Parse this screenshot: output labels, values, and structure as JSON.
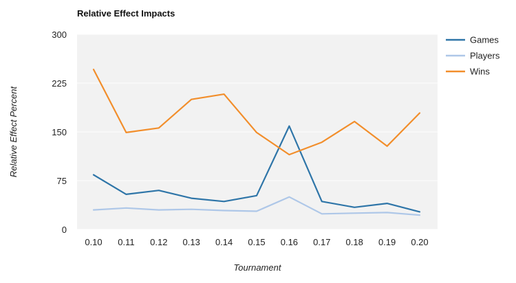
{
  "chart_data": {
    "type": "line",
    "title": "Relative Effect Impacts",
    "xlabel": "Tournament",
    "ylabel": "Relative Effect Percent",
    "categories": [
      "0.10",
      "0.11",
      "0.12",
      "0.13",
      "0.14",
      "0.15",
      "0.16",
      "0.17",
      "0.18",
      "0.19",
      "0.20"
    ],
    "yticks": [
      "0",
      "75",
      "150",
      "225",
      "300"
    ],
    "ylim": [
      0,
      300
    ],
    "grid": true,
    "legend_position": "right",
    "series": [
      {
        "name": "Games",
        "color": "#2e75a8",
        "values": [
          84,
          54,
          60,
          48,
          43,
          52,
          159,
          43,
          34,
          40,
          27
        ]
      },
      {
        "name": "Players",
        "color": "#aec7e8",
        "values": [
          30,
          33,
          30,
          31,
          29,
          28,
          50,
          24,
          25,
          26,
          22
        ]
      },
      {
        "name": "Wins",
        "color": "#f28e2b",
        "values": [
          246,
          149,
          156,
          200,
          208,
          149,
          115,
          134,
          166,
          128,
          179
        ]
      }
    ]
  }
}
